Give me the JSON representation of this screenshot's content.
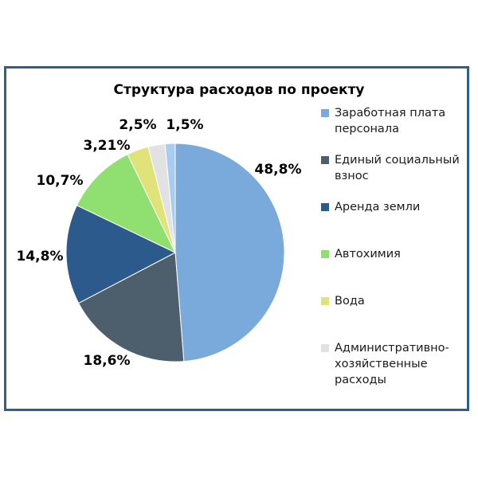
{
  "chart_data": {
    "type": "pie",
    "title": "Структура расходов по проекту",
    "legend_position": "right",
    "slices": [
      {
        "name": "Заработная плата персонала",
        "value": 48.8,
        "label": "48,8%",
        "color": "#7aaadc"
      },
      {
        "name": "Единый социальный взнос",
        "value": 18.6,
        "label": "18,6%",
        "color": "#4d5e6c"
      },
      {
        "name": "Аренда земли",
        "value": 14.8,
        "label": "14,8%",
        "color": "#2d5a8c"
      },
      {
        "name": "Автохимия",
        "value": 10.7,
        "label": "10,7%",
        "color": "#8fe070"
      },
      {
        "name": "Вода",
        "value": 3.21,
        "label": "3,21%",
        "color": "#e0e37a"
      },
      {
        "name": "Административно-хозяйственные расходы",
        "value": 2.5,
        "label": "2,5%",
        "color": "#e2e2e2"
      },
      {
        "name": "",
        "value": 1.5,
        "label": "1,5%",
        "color": "#a8cdf0"
      }
    ]
  },
  "legend": {
    "items": [
      {
        "label": "Заработная плата персонала",
        "color": "#7aaadc"
      },
      {
        "label": "Единый социальный взнос",
        "color": "#4d5e6c"
      },
      {
        "label": "Аренда земли",
        "color": "#2d5a8c"
      },
      {
        "label": "Автохимия",
        "color": "#8fe070"
      },
      {
        "label": "Вода",
        "color": "#e0e37a"
      },
      {
        "label": "Административно-хозяйственные расходы",
        "color": "#e2e2e2"
      }
    ]
  }
}
